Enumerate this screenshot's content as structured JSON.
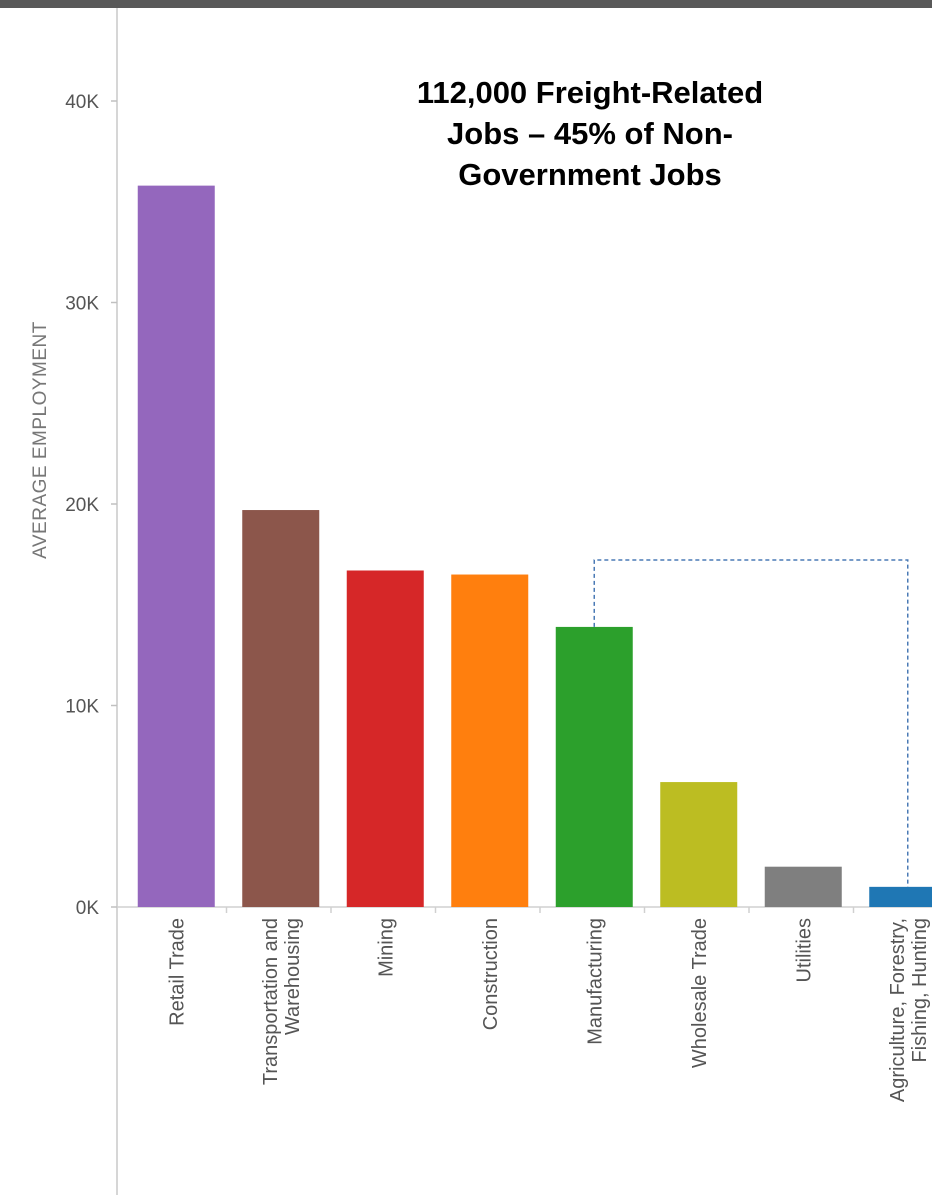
{
  "chart_data": {
    "type": "bar",
    "title": "",
    "xlabel": "",
    "ylabel": "AVERAGE EMPLOYMENT",
    "ylim": [
      0,
      40000
    ],
    "grid": false,
    "legend": "none",
    "y_ticks": [
      {
        "value": 0,
        "label": "0K"
      },
      {
        "value": 10000,
        "label": "10K"
      },
      {
        "value": 20000,
        "label": "20K"
      },
      {
        "value": 30000,
        "label": "30K"
      },
      {
        "value": 40000,
        "label": "40K"
      }
    ],
    "categories": [
      [
        "Retail Trade"
      ],
      [
        "Transportation and",
        "Warehousing"
      ],
      [
        "Mining"
      ],
      [
        "Construction"
      ],
      [
        "Manufacturing"
      ],
      [
        "Wholesale Trade"
      ],
      [
        "Utilities"
      ],
      [
        "Agriculture, Forestry,",
        "Fishing, Hunting"
      ]
    ],
    "values": [
      35800,
      19700,
      16700,
      16500,
      13900,
      6200,
      2000,
      1000
    ],
    "colors": [
      "#9467bd",
      "#8c564b",
      "#d62728",
      "#ff7f0e",
      "#2ca02c",
      "#bcbd22",
      "#7f7f7f",
      "#1f77b4"
    ],
    "annotations": [
      "112,000 Freight-Related",
      "Jobs – 45% of Non-",
      "Government Jobs"
    ],
    "bracket": {
      "from_category": "Manufacturing",
      "to_category": "Agriculture, Forestry, Fishing, Hunting",
      "color": "#4a7ab5"
    }
  }
}
